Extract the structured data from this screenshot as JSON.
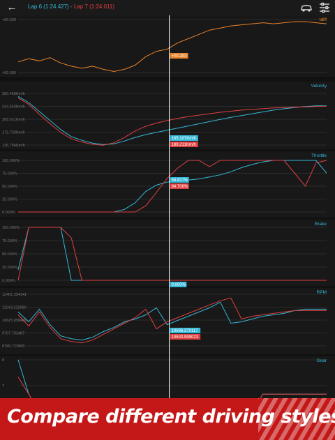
{
  "header": {
    "lap_a_label": "Lap 6 (1:24.427)",
    "separator": "-",
    "lap_b_label": "Lap 7 (1:24.011)",
    "icons": [
      "back-arrow-icon",
      "car-compare-icon",
      "sliders-icon"
    ]
  },
  "colors": {
    "lap_a": "#35b8d8",
    "lap_b": "#e04040",
    "tdiff": "#e8832a",
    "background": "#111111"
  },
  "cursor_fraction": 0.49,
  "chart_data": [
    {
      "type": "line",
      "title": "tdiff",
      "ylim": [
        0,
        0.5
      ],
      "y_ticks": [
        "+00.500",
        "+00.000"
      ],
      "cursor_readout": "+00.203",
      "series": [
        {
          "color": "#e8832a",
          "values": [
            0.1,
            0.13,
            0.11,
            0.14,
            0.09,
            0.06,
            0.04,
            0.06,
            0.03,
            0.01,
            0.03,
            0.07,
            0.15,
            0.2,
            0.22,
            0.28,
            0.32,
            0.36,
            0.4,
            0.42,
            0.44,
            0.45,
            0.46,
            0.47,
            0.46,
            0.47,
            0.48,
            0.48,
            0.47,
            0.46
          ]
        }
      ]
    },
    {
      "type": "line",
      "title": "Velocity",
      "ylim": [
        136.784,
        280.458
      ],
      "y_ticks": [
        "280.458Km/h",
        "244.540Km/h",
        "208.621Km/h",
        "172.703Km/h",
        "136.784Km/h"
      ],
      "cursor_readouts": [
        "165.107Km/h",
        "189.211Km/h"
      ],
      "series": [
        {
          "color": "#35b8d8",
          "values": [
            272,
            255,
            230,
            205,
            180,
            160,
            150,
            142,
            138,
            140,
            148,
            158,
            166,
            172,
            178,
            184,
            190,
            196,
            202,
            208,
            214,
            219,
            224,
            229,
            234,
            238,
            241,
            244,
            246,
            246
          ]
        },
        {
          "color": "#e04040",
          "values": [
            268,
            250,
            222,
            196,
            172,
            154,
            145,
            139,
            136,
            143,
            158,
            176,
            189,
            198,
            205,
            211,
            216,
            220,
            224,
            228,
            231,
            234,
            236,
            238,
            240,
            241,
            242,
            243,
            244,
            245
          ]
        }
      ]
    },
    {
      "type": "line",
      "title": "Throttle",
      "ylim": [
        0,
        100
      ],
      "y_ticks": [
        "100.000%",
        "75.000%",
        "50.000%",
        "25.000%",
        "0.000%"
      ],
      "cursor_readouts": [
        "68.627%",
        "84.706%"
      ],
      "series": [
        {
          "color": "#35b8d8",
          "values": [
            0,
            0,
            0,
            0,
            0,
            0,
            0,
            0,
            0,
            0,
            5,
            18,
            40,
            52,
            58,
            60,
            62,
            64,
            68,
            72,
            78,
            86,
            92,
            97,
            100,
            100,
            100,
            100,
            100,
            75
          ]
        },
        {
          "color": "#e04040",
          "values": [
            0,
            0,
            0,
            0,
            0,
            0,
            0,
            0,
            0,
            0,
            0,
            0,
            12,
            38,
            65,
            85,
            100,
            100,
            88,
            100,
            100,
            100,
            100,
            100,
            100,
            100,
            75,
            50,
            95,
            100
          ]
        }
      ]
    },
    {
      "type": "line",
      "title": "Brake",
      "ylim": [
        0,
        100
      ],
      "y_ticks": [
        "100.000%",
        "75.000%",
        "50.000%",
        "25.000%",
        "0.000%"
      ],
      "cursor_readouts": [
        "0.000%",
        "0.000%"
      ],
      "series": [
        {
          "color": "#35b8d8",
          "values": [
            20,
            100,
            100,
            100,
            100,
            0,
            0,
            0,
            0,
            0,
            0,
            0,
            0,
            0,
            0,
            0,
            0,
            0,
            0,
            0,
            0,
            0,
            0,
            0,
            0,
            0,
            0,
            0,
            0,
            0
          ]
        },
        {
          "color": "#e04040",
          "values": [
            0,
            100,
            100,
            100,
            100,
            80,
            0,
            0,
            0,
            0,
            0,
            0,
            0,
            0,
            0,
            0,
            0,
            0,
            0,
            0,
            0,
            0,
            0,
            0,
            0,
            0,
            0,
            0,
            0,
            0
          ]
        }
      ]
    },
    {
      "type": "line",
      "title": "RPM",
      "ylim": [
        8789.723,
        12461.35
      ],
      "y_ticks": [
        "12461.354141",
        "11543.322080",
        "10625.858486",
        "9707.793487",
        "8789.723583"
      ],
      "cursor_readouts": [
        "10696.370117",
        "10533.999023"
      ],
      "series": [
        {
          "color": "#35b8d8",
          "values": [
            11200,
            10500,
            11400,
            10300,
            9500,
            9300,
            9200,
            9400,
            9800,
            10100,
            10500,
            10700,
            11000,
            11500,
            10300,
            10600,
            10900,
            11200,
            11500,
            11900,
            10400,
            10500,
            10700,
            10900,
            11000,
            11100,
            11300,
            11400,
            11400,
            11400
          ]
        },
        {
          "color": "#e04040",
          "values": [
            11000,
            10200,
            11200,
            10100,
            9300,
            9100,
            9000,
            9200,
            9600,
            10000,
            10400,
            10800,
            11400,
            10000,
            10500,
            10800,
            11100,
            11400,
            11700,
            12000,
            12200,
            10700,
            10900,
            11000,
            11100,
            11200,
            11300,
            11300,
            11300,
            11300
          ]
        }
      ]
    },
    {
      "type": "line",
      "title": "Gear",
      "ylim": [
        5,
        8
      ],
      "y_ticks": [
        "8",
        "7",
        "6"
      ],
      "series": [
        {
          "color": "#35b8d8",
          "values": [
            8,
            6,
            5,
            5,
            5,
            5,
            5,
            5,
            5,
            5,
            5,
            5,
            5,
            5,
            5,
            5,
            5,
            5,
            5,
            5,
            5,
            5,
            5,
            6,
            6,
            6,
            6,
            6,
            6,
            6
          ]
        },
        {
          "color": "#e04040",
          "values": [
            7,
            6,
            5,
            5,
            5,
            5,
            5,
            5,
            5,
            5,
            5,
            5,
            5,
            5,
            5,
            5,
            5,
            5,
            5,
            5,
            5,
            5,
            5,
            6,
            6,
            6,
            6,
            6,
            6,
            6
          ]
        }
      ]
    }
  ],
  "banner": {
    "text": "Compare different driving styles"
  }
}
